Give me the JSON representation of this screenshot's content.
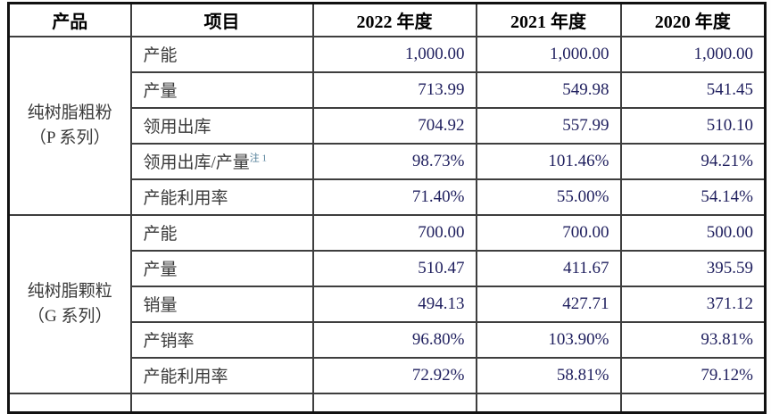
{
  "colors": {
    "outer_border": "#111111",
    "inner_border": "#3e3e3e",
    "header_text": "#000000",
    "body_text": "#3a3a3a",
    "number_text": "#1f1f5e",
    "footnote_sup": "#4d7b95",
    "background": "#ffffff"
  },
  "table": {
    "headers": {
      "product": "产品",
      "item": "项目",
      "y2022": "2022 年度",
      "y2021": "2021 年度",
      "y2020": "2020 年度"
    },
    "groups": [
      {
        "product_line1": "纯树脂粗粉",
        "product_line2": "（P 系列）",
        "rows": [
          {
            "item": "产能",
            "note": "",
            "y2022": "1,000.00",
            "y2021": "1,000.00",
            "y2020": "1,000.00"
          },
          {
            "item": "产量",
            "note": "",
            "y2022": "713.99",
            "y2021": "549.98",
            "y2020": "541.45"
          },
          {
            "item": "领用出库",
            "note": "",
            "y2022": "704.92",
            "y2021": "557.99",
            "y2020": "510.10"
          },
          {
            "item": "领用出库/产量",
            "note": "注 1",
            "y2022": "98.73%",
            "y2021": "101.46%",
            "y2020": "94.21%"
          },
          {
            "item": "产能利用率",
            "note": "",
            "y2022": "71.40%",
            "y2021": "55.00%",
            "y2020": "54.14%"
          }
        ]
      },
      {
        "product_line1": "纯树脂颗粒",
        "product_line2": "（G 系列）",
        "rows": [
          {
            "item": "产能",
            "note": "",
            "y2022": "700.00",
            "y2021": "700.00",
            "y2020": "500.00"
          },
          {
            "item": "产量",
            "note": "",
            "y2022": "510.47",
            "y2021": "411.67",
            "y2020": "395.59"
          },
          {
            "item": "销量",
            "note": "",
            "y2022": "494.13",
            "y2021": "427.71",
            "y2020": "371.12"
          },
          {
            "item": "产销率",
            "note": "",
            "y2022": "96.80%",
            "y2021": "103.90%",
            "y2020": "93.81%"
          },
          {
            "item": "产能利用率",
            "note": "",
            "y2022": "72.92%",
            "y2021": "58.81%",
            "y2020": "79.12%"
          }
        ]
      }
    ]
  }
}
